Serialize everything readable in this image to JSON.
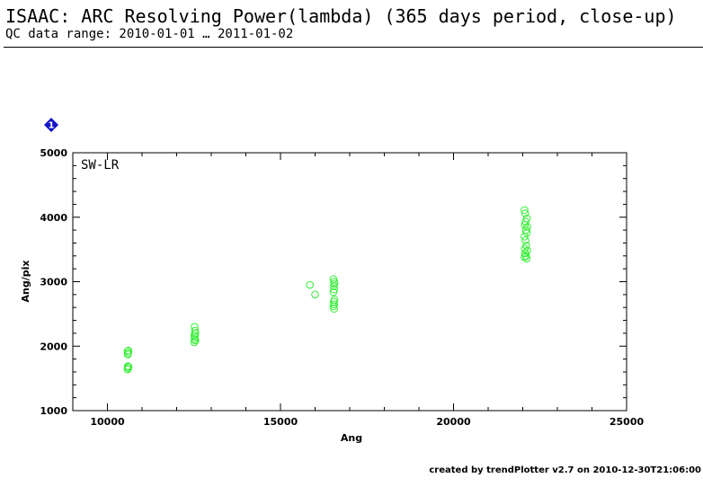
{
  "header": {
    "title": "ISAAC: ARC Resolving Power(lambda) (365 days period, close-up)",
    "subtitle": "QC data range: 2010-01-01 … 2011-01-02"
  },
  "badge": {
    "label": "1",
    "color": "#1414c8"
  },
  "footer": {
    "text": "created by trendPlotter v2.7 on 2010-12-30T21:06:00"
  },
  "chart_data": {
    "type": "scatter",
    "panel_label": "SW-LR",
    "xlabel": "Ang",
    "ylabel": "Ang/pix",
    "xlim": [
      9000,
      25000
    ],
    "ylim": [
      1000,
      5000
    ],
    "xticks": [
      10000,
      15000,
      20000,
      25000
    ],
    "yticks": [
      1000,
      2000,
      3000,
      4000,
      5000
    ],
    "marker_color": "#33ee33",
    "marker": "open-circle",
    "grid": false,
    "legend": "none",
    "points": [
      {
        "x": 10580,
        "y": 1920
      },
      {
        "x": 10600,
        "y": 1890
      },
      {
        "x": 10590,
        "y": 1870
      },
      {
        "x": 10610,
        "y": 1930
      },
      {
        "x": 10590,
        "y": 1690
      },
      {
        "x": 10600,
        "y": 1660
      },
      {
        "x": 10580,
        "y": 1640
      },
      {
        "x": 10610,
        "y": 1680
      },
      {
        "x": 12520,
        "y": 2300
      },
      {
        "x": 12530,
        "y": 2240
      },
      {
        "x": 12540,
        "y": 2200
      },
      {
        "x": 12510,
        "y": 2170
      },
      {
        "x": 12530,
        "y": 2140
      },
      {
        "x": 12520,
        "y": 2110
      },
      {
        "x": 12540,
        "y": 2090
      },
      {
        "x": 12510,
        "y": 2060
      },
      {
        "x": 15850,
        "y": 2950
      },
      {
        "x": 16000,
        "y": 2800
      },
      {
        "x": 16530,
        "y": 3040
      },
      {
        "x": 16550,
        "y": 3000
      },
      {
        "x": 16560,
        "y": 2970
      },
      {
        "x": 16540,
        "y": 2930
      },
      {
        "x": 16550,
        "y": 2880
      },
      {
        "x": 16530,
        "y": 2840
      },
      {
        "x": 16560,
        "y": 2720
      },
      {
        "x": 16540,
        "y": 2690
      },
      {
        "x": 16550,
        "y": 2650
      },
      {
        "x": 16530,
        "y": 2620
      },
      {
        "x": 16550,
        "y": 2580
      },
      {
        "x": 22050,
        "y": 4110
      },
      {
        "x": 22070,
        "y": 4060
      },
      {
        "x": 22120,
        "y": 3980
      },
      {
        "x": 22080,
        "y": 3930
      },
      {
        "x": 22060,
        "y": 3880
      },
      {
        "x": 22130,
        "y": 3850
      },
      {
        "x": 22090,
        "y": 3800
      },
      {
        "x": 22120,
        "y": 3760
      },
      {
        "x": 22050,
        "y": 3700
      },
      {
        "x": 22080,
        "y": 3640
      },
      {
        "x": 22100,
        "y": 3560
      },
      {
        "x": 22060,
        "y": 3510
      },
      {
        "x": 22130,
        "y": 3480
      },
      {
        "x": 22070,
        "y": 3440
      },
      {
        "x": 22090,
        "y": 3400
      },
      {
        "x": 22050,
        "y": 3380
      },
      {
        "x": 22110,
        "y": 3360
      }
    ]
  }
}
